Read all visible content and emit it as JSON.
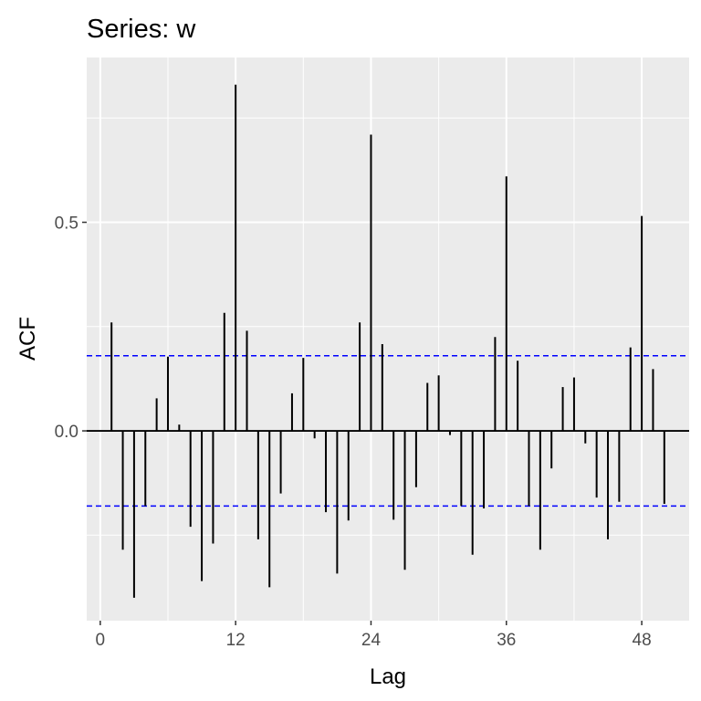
{
  "chart_data": {
    "type": "bar",
    "title": "Series: w",
    "xlabel": "Lag",
    "ylabel": "ACF",
    "xlim": [
      -1.2,
      52.2
    ],
    "ylim": [
      -0.455,
      0.895
    ],
    "x_ticks": [
      0,
      12,
      24,
      36,
      48
    ],
    "x_tick_labels": [
      "0",
      "12",
      "24",
      "36",
      "48"
    ],
    "y_ticks": [
      0.0,
      0.5
    ],
    "y_tick_labels": [
      "0.0",
      "0.5"
    ],
    "y_minor_ticks": [
      -0.25,
      0.25,
      0.75
    ],
    "confidence_bounds": [
      0.18,
      -0.18
    ],
    "lags": [
      1,
      2,
      3,
      4,
      5,
      6,
      7,
      8,
      9,
      10,
      11,
      12,
      13,
      14,
      15,
      16,
      17,
      18,
      19,
      20,
      21,
      22,
      23,
      24,
      25,
      26,
      27,
      28,
      29,
      30,
      31,
      32,
      33,
      34,
      35,
      36,
      37,
      38,
      39,
      40,
      41,
      42,
      43,
      44,
      45,
      46,
      47,
      48,
      49,
      50
    ],
    "acf": [
      0.26,
      -0.285,
      -0.4,
      -0.18,
      0.078,
      0.178,
      0.015,
      -0.23,
      -0.36,
      -0.27,
      0.283,
      0.83,
      0.24,
      -0.26,
      -0.375,
      -0.15,
      0.09,
      0.175,
      -0.018,
      -0.195,
      -0.342,
      -0.215,
      0.26,
      0.71,
      0.208,
      -0.213,
      -0.333,
      -0.135,
      0.115,
      0.133,
      -0.01,
      -0.18,
      -0.297,
      -0.186,
      0.225,
      0.61,
      0.168,
      -0.18,
      -0.285,
      -0.09,
      0.105,
      0.128,
      -0.03,
      -0.16,
      -0.26,
      -0.17,
      0.2,
      0.515,
      0.148,
      -0.175
    ],
    "grid": true,
    "colors": {
      "panel": "#ebebeb",
      "grid": "#ffffff",
      "bars": "#000000",
      "bounds": "#0000ff",
      "tick_label": "#4d4d4d",
      "tick_mark": "#333333",
      "text": "#000000"
    }
  }
}
